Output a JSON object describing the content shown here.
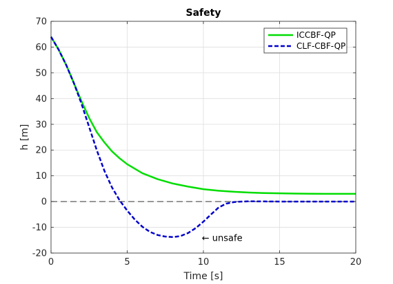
{
  "chart_data": {
    "type": "line",
    "title": "Safety",
    "xlabel": "Time [s]",
    "ylabel": "h [m]",
    "xlim": [
      0,
      20
    ],
    "ylim": [
      -20,
      70
    ],
    "xticks": [
      0,
      5,
      10,
      15,
      20
    ],
    "yticks": [
      -20,
      -10,
      0,
      10,
      20,
      30,
      40,
      50,
      60,
      70
    ],
    "grid": true,
    "legend_position": "top-right",
    "reference_line": {
      "y": 0,
      "style": "dashed",
      "color": "#333333"
    },
    "annotation": {
      "text": "← unsafe",
      "x": 9.9,
      "y": -14
    },
    "series": [
      {
        "name": "ICCBF-QP",
        "color": "#00dd00",
        "style": "solid",
        "x": [
          0,
          0.5,
          1,
          1.5,
          2,
          2.5,
          3,
          3.5,
          4,
          4.5,
          5,
          6,
          7,
          8,
          9,
          10,
          11,
          12,
          13,
          14,
          15,
          16,
          17,
          18,
          19,
          20
        ],
        "y": [
          64,
          59,
          53,
          46,
          39,
          32.5,
          27,
          23,
          19.5,
          16.8,
          14.5,
          11,
          8.7,
          7,
          5.8,
          4.8,
          4.2,
          3.8,
          3.5,
          3.3,
          3.2,
          3.1,
          3.05,
          3.0,
          3.0,
          3.0
        ]
      },
      {
        "name": "CLF-CBF-QP",
        "color": "#0000cc",
        "style": "dashed",
        "x": [
          0,
          0.5,
          1,
          1.5,
          2,
          2.5,
          3,
          3.5,
          4,
          4.5,
          5,
          5.5,
          6,
          6.5,
          7,
          7.5,
          8,
          8.5,
          9,
          9.5,
          10,
          10.5,
          11,
          11.5,
          12,
          12.5,
          13,
          14,
          15,
          16,
          17,
          18,
          19,
          20
        ],
        "y": [
          64,
          59,
          53,
          46,
          38,
          29,
          20,
          12,
          5.5,
          0.5,
          -3.5,
          -7,
          -9.8,
          -11.8,
          -13,
          -13.6,
          -13.8,
          -13.4,
          -12.2,
          -10.3,
          -7.8,
          -5,
          -2.3,
          -0.8,
          -0.2,
          0,
          0.1,
          0.05,
          0,
          0,
          0,
          0,
          0,
          0
        ]
      }
    ]
  }
}
